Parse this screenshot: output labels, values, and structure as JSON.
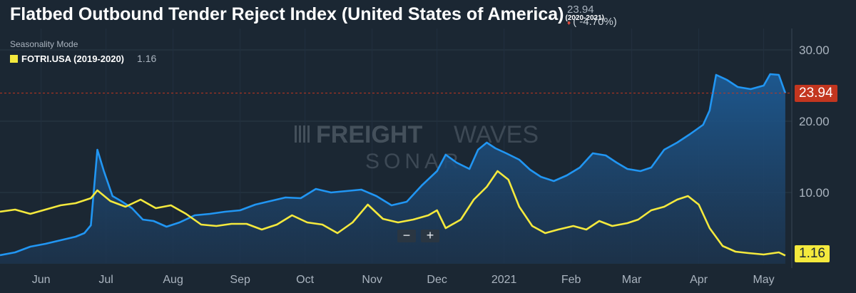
{
  "header": {
    "title": "Flatbed Outbound Tender Reject Index (United States of America)",
    "title_range": "(2020-2021)",
    "last_value": "23.94",
    "delta": "( -4.70%)",
    "delta_icon": "down-diamond-icon",
    "mode": "Seasonality Mode"
  },
  "legend": {
    "label": "FOTRI.USA (2019-2020)",
    "value": "1.16"
  },
  "zoom": {
    "minus": "−",
    "plus": "+"
  },
  "watermark": {
    "brand_bold": "FREIGHT",
    "brand_light": "WAVES",
    "sub": "SONAR"
  },
  "colors": {
    "background": "#1b2733",
    "current": "#2196f3",
    "previous": "#f4e93d",
    "last_tag": "#c3361f"
  },
  "chart_data": {
    "type": "line",
    "ylim": [
      0,
      33
    ],
    "y_ticks": [
      "10.00",
      "20.00",
      "30.00"
    ],
    "x_ticks": [
      "Jun",
      "Jul",
      "Aug",
      "Sep",
      "Oct",
      "Nov",
      "Dec",
      "2021",
      "Feb",
      "Mar",
      "Apr",
      "May"
    ],
    "last_value_line": 23.94,
    "series": [
      {
        "name": "2020-2021",
        "end_label": "23.94",
        "points": [
          [
            "2020-05-13",
            1.2
          ],
          [
            "2020-05-20",
            1.6
          ],
          [
            "2020-05-27",
            2.4
          ],
          [
            "2020-06-03",
            2.8
          ],
          [
            "2020-06-10",
            3.3
          ],
          [
            "2020-06-17",
            3.8
          ],
          [
            "2020-06-21",
            4.3
          ],
          [
            "2020-06-24",
            5.4
          ],
          [
            "2020-06-27",
            16.0
          ],
          [
            "2020-06-30",
            13.0
          ],
          [
            "2020-07-04",
            9.5
          ],
          [
            "2020-07-08",
            8.8
          ],
          [
            "2020-07-13",
            7.8
          ],
          [
            "2020-07-18",
            6.2
          ],
          [
            "2020-07-23",
            6.0
          ],
          [
            "2020-07-29",
            5.2
          ],
          [
            "2020-08-04",
            5.8
          ],
          [
            "2020-08-11",
            6.8
          ],
          [
            "2020-08-18",
            7.0
          ],
          [
            "2020-08-25",
            7.3
          ],
          [
            "2020-09-01",
            7.5
          ],
          [
            "2020-09-08",
            8.3
          ],
          [
            "2020-09-15",
            8.8
          ],
          [
            "2020-09-22",
            9.3
          ],
          [
            "2020-09-29",
            9.2
          ],
          [
            "2020-10-06",
            10.5
          ],
          [
            "2020-10-13",
            10.0
          ],
          [
            "2020-10-20",
            10.2
          ],
          [
            "2020-10-27",
            10.4
          ],
          [
            "2020-11-03",
            9.5
          ],
          [
            "2020-11-10",
            8.2
          ],
          [
            "2020-11-17",
            8.7
          ],
          [
            "2020-11-24",
            11.0
          ],
          [
            "2020-12-01",
            13.0
          ],
          [
            "2020-12-05",
            15.3
          ],
          [
            "2020-12-10",
            14.2
          ],
          [
            "2020-12-16",
            13.3
          ],
          [
            "2020-12-20",
            16.0
          ],
          [
            "2020-12-24",
            17.0
          ],
          [
            "2020-12-28",
            16.2
          ],
          [
            "2021-01-02",
            15.5
          ],
          [
            "2021-01-08",
            14.6
          ],
          [
            "2021-01-13",
            13.2
          ],
          [
            "2021-01-18",
            12.2
          ],
          [
            "2021-01-24",
            11.6
          ],
          [
            "2021-01-30",
            12.4
          ],
          [
            "2021-02-05",
            13.5
          ],
          [
            "2021-02-11",
            15.5
          ],
          [
            "2021-02-17",
            15.2
          ],
          [
            "2021-02-22",
            14.2
          ],
          [
            "2021-02-27",
            13.3
          ],
          [
            "2021-03-05",
            13.0
          ],
          [
            "2021-03-10",
            13.5
          ],
          [
            "2021-03-16",
            16.0
          ],
          [
            "2021-03-22",
            17.0
          ],
          [
            "2021-03-28",
            18.2
          ],
          [
            "2021-04-03",
            19.5
          ],
          [
            "2021-04-06",
            21.5
          ],
          [
            "2021-04-09",
            26.5
          ],
          [
            "2021-04-14",
            25.8
          ],
          [
            "2021-04-19",
            24.8
          ],
          [
            "2021-04-25",
            24.5
          ],
          [
            "2021-05-01",
            25.0
          ],
          [
            "2021-05-04",
            26.6
          ],
          [
            "2021-05-08",
            26.5
          ],
          [
            "2021-05-11",
            23.94
          ]
        ]
      },
      {
        "name": "FOTRI.USA (2019-2020)",
        "end_label": "1.16",
        "points": [
          [
            "2020-05-13",
            7.3
          ],
          [
            "2020-05-20",
            7.6
          ],
          [
            "2020-05-27",
            7.0
          ],
          [
            "2020-06-03",
            7.6
          ],
          [
            "2020-06-10",
            8.2
          ],
          [
            "2020-06-17",
            8.5
          ],
          [
            "2020-06-24",
            9.2
          ],
          [
            "2020-06-27",
            10.3
          ],
          [
            "2020-07-03",
            8.8
          ],
          [
            "2020-07-10",
            8.0
          ],
          [
            "2020-07-17",
            9.0
          ],
          [
            "2020-07-24",
            7.8
          ],
          [
            "2020-07-31",
            8.2
          ],
          [
            "2020-08-07",
            7.0
          ],
          [
            "2020-08-14",
            5.5
          ],
          [
            "2020-08-21",
            5.3
          ],
          [
            "2020-08-28",
            5.6
          ],
          [
            "2020-09-04",
            5.6
          ],
          [
            "2020-09-11",
            4.8
          ],
          [
            "2020-09-18",
            5.5
          ],
          [
            "2020-09-25",
            6.8
          ],
          [
            "2020-10-02",
            5.8
          ],
          [
            "2020-10-09",
            5.5
          ],
          [
            "2020-10-16",
            4.3
          ],
          [
            "2020-10-23",
            5.8
          ],
          [
            "2020-10-30",
            8.3
          ],
          [
            "2020-11-06",
            6.3
          ],
          [
            "2020-11-13",
            5.8
          ],
          [
            "2020-11-20",
            6.2
          ],
          [
            "2020-11-27",
            6.8
          ],
          [
            "2020-12-01",
            7.5
          ],
          [
            "2020-12-05",
            5.0
          ],
          [
            "2020-12-12",
            6.2
          ],
          [
            "2020-12-18",
            9.0
          ],
          [
            "2020-12-24",
            10.8
          ],
          [
            "2020-12-29",
            13.0
          ],
          [
            "2021-01-03",
            11.8
          ],
          [
            "2021-01-08",
            8.0
          ],
          [
            "2021-01-14",
            5.3
          ],
          [
            "2021-01-20",
            4.3
          ],
          [
            "2021-01-26",
            4.8
          ],
          [
            "2021-02-02",
            5.3
          ],
          [
            "2021-02-08",
            4.8
          ],
          [
            "2021-02-14",
            6.0
          ],
          [
            "2021-02-20",
            5.3
          ],
          [
            "2021-02-27",
            5.7
          ],
          [
            "2021-03-04",
            6.2
          ],
          [
            "2021-03-10",
            7.5
          ],
          [
            "2021-03-16",
            8.0
          ],
          [
            "2021-03-22",
            9.0
          ],
          [
            "2021-03-27",
            9.5
          ],
          [
            "2021-04-01",
            8.3
          ],
          [
            "2021-04-06",
            5.0
          ],
          [
            "2021-04-12",
            2.5
          ],
          [
            "2021-04-18",
            1.7
          ],
          [
            "2021-04-24",
            1.5
          ],
          [
            "2021-05-01",
            1.3
          ],
          [
            "2021-05-08",
            1.6
          ],
          [
            "2021-05-11",
            1.16
          ]
        ]
      }
    ]
  }
}
